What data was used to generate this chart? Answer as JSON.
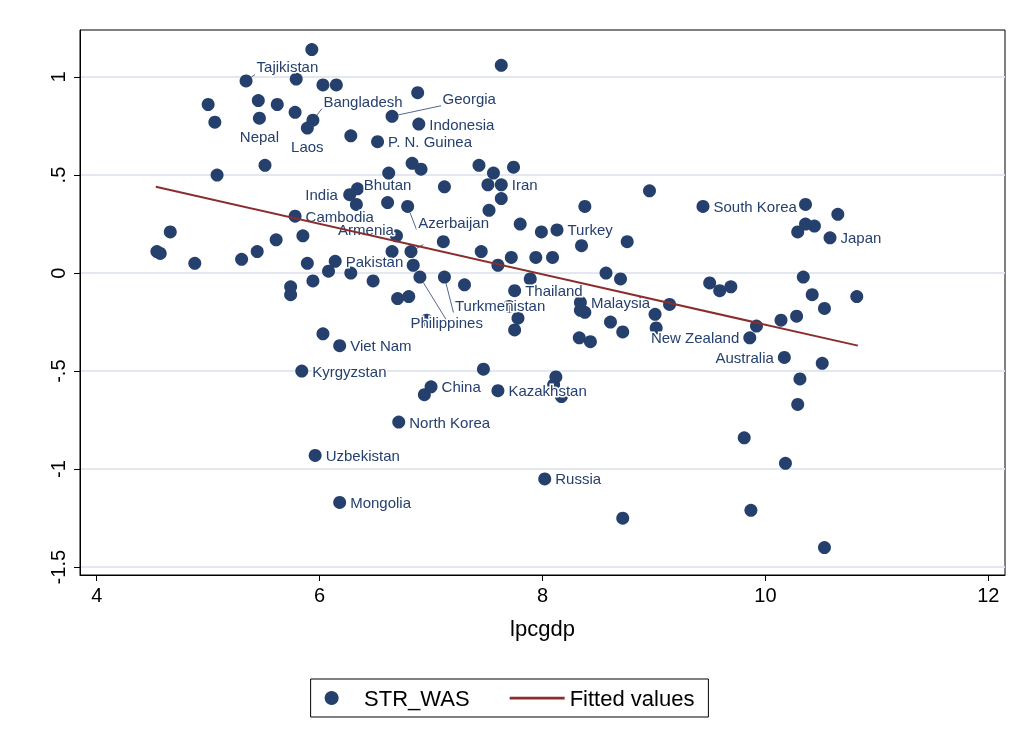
{
  "chart_data": {
    "type": "scatter",
    "xlabel": "lpcgdp",
    "xlim": [
      3.85,
      12.15
    ],
    "xticks": [
      4,
      6,
      8,
      10,
      12
    ],
    "ylim": [
      -1.54,
      1.24
    ],
    "yticks": [
      {
        "value": -1.5,
        "label": "-1.5"
      },
      {
        "value": -1,
        "label": "-1"
      },
      {
        "value": -0.5,
        "label": "-.5"
      },
      {
        "value": 0,
        "label": "0"
      },
      {
        "value": 0.5,
        "label": ".5"
      },
      {
        "value": 1,
        "label": "1"
      }
    ],
    "grid": "y",
    "legend": "bottom",
    "marker": "circle",
    "series": [
      {
        "name": "STR_WAS",
        "color": "#26406e",
        "x": [
          5.34,
          5.46,
          5.94,
          5.89,
          6.65,
          6.89,
          6.52,
          7.63,
          6.61,
          6.33,
          6.79,
          5.78,
          6.82,
          6.14,
          6.9,
          7.12,
          7.75,
          8.34,
          8.13,
          9.44,
          10.58,
          9.86,
          10.17,
          6.18,
          5.84,
          7.0,
          7.6,
          6.71,
          5.96,
          6.18,
          8.02,
          5.93,
          7.63,
          5.79,
          6.03,
          6.15,
          5.0,
          5.45,
          5.62,
          5.78,
          5.06,
          6.88,
          6.28,
          5.08,
          5.51,
          6.62,
          6.83,
          6.91,
          7.43,
          7.56,
          7.74,
          7.12,
          7.51,
          7.63,
          7.52,
          7.8,
          7.99,
          8.38,
          8.96,
          6.34,
          6.27,
          5.85,
          5.61,
          4.66,
          4.54,
          4.57,
          4.88,
          5.3,
          5.44,
          5.89,
          5.94,
          6.08,
          6.28,
          6.48,
          6.65,
          6.84,
          6.69,
          7.11,
          7.45,
          7.6,
          7.72,
          7.94,
          8.09,
          8.35,
          8.76,
          7.3,
          7.89,
          7.7,
          7.78,
          7.75,
          8.34,
          8.38,
          6.96,
          6.7,
          6.8,
          5.74,
          5.74,
          6.03,
          8.33,
          8.43,
          8.61,
          8.72,
          8.57,
          8.7,
          9.01,
          9.02,
          9.14,
          9.5,
          9.59,
          9.69,
          9.92,
          10.14,
          10.28,
          10.34,
          10.42,
          10.53,
          10.82,
          10.36,
          10.36,
          10.44,
          10.29,
          10.65,
          10.51,
          10.31,
          10.29,
          9.81,
          10.18,
          9.87,
          10.53,
          8.72,
          7.47,
          8.12,
          8.1,
          8.17,
          6.94
        ],
        "values": [
          0.98,
          0.79,
          0.78,
          0.74,
          0.8,
          0.76,
          0.67,
          0.45,
          0.36,
          0.35,
          0.34,
          0.29,
          0.11,
          0.06,
          -0.02,
          -0.02,
          -0.09,
          -0.15,
          0.22,
          0.34,
          0.18,
          -0.33,
          -0.43,
          -0.37,
          -0.5,
          -0.58,
          -0.6,
          -0.76,
          -0.93,
          -1.17,
          -1.05,
          1.14,
          1.06,
          0.99,
          0.96,
          0.96,
          0.86,
          0.88,
          0.86,
          0.82,
          0.77,
          0.92,
          0.7,
          0.5,
          0.55,
          0.51,
          0.56,
          0.53,
          0.55,
          0.51,
          0.54,
          0.44,
          0.45,
          0.38,
          0.32,
          0.25,
          0.21,
          0.34,
          0.42,
          0.43,
          0.4,
          0.19,
          0.17,
          0.21,
          0.11,
          0.1,
          0.05,
          0.07,
          0.11,
          0.05,
          -0.04,
          0.01,
          0.0,
          -0.04,
          0.11,
          0.04,
          0.19,
          0.16,
          0.11,
          0.04,
          0.08,
          0.08,
          0.08,
          0.14,
          0.16,
          -0.06,
          -0.03,
          -0.17,
          -0.23,
          -0.29,
          -0.19,
          -0.2,
          -0.24,
          -0.13,
          -0.12,
          -0.07,
          -0.11,
          -0.31,
          -0.33,
          -0.35,
          -0.25,
          -0.3,
          0.0,
          -0.03,
          -0.21,
          -0.28,
          -0.16,
          -0.05,
          -0.09,
          -0.07,
          -0.27,
          -0.24,
          -0.22,
          -0.02,
          -0.11,
          -0.18,
          -0.12,
          0.35,
          0.25,
          0.24,
          0.21,
          0.3,
          -0.46,
          -0.54,
          -0.67,
          -0.84,
          -0.97,
          -1.21,
          -1.4,
          -1.25,
          -0.49,
          -0.53,
          -0.57,
          -0.63,
          -0.62
        ],
        "value_labels": [
          "Tajikistan",
          "Nepal",
          "Bangladesh",
          "Laos",
          "Georgia",
          "Indonesia",
          "P. N. Guinea",
          "Iran",
          "Bhutan",
          "India",
          "Azerbaijan",
          "Cambodia",
          "Armenia",
          "Pakistan",
          "Philippines",
          "Turkmenistan",
          "Thailand",
          "Malaysia",
          "Turkey",
          "South Korea",
          "Japan",
          "New Zealand",
          "Australia",
          "Viet Nam",
          "Kyrgyzstan",
          "China",
          "Kazakhstan",
          "North Korea",
          "Uzbekistan",
          "Mongolia",
          "Russia",
          null,
          null,
          null,
          null,
          null,
          null,
          null,
          null,
          null,
          null,
          null,
          null,
          null,
          null,
          null,
          null,
          null,
          null,
          null,
          null,
          null,
          null,
          null,
          null,
          null,
          null,
          null,
          null,
          null,
          null,
          null,
          null,
          null,
          null,
          null,
          null,
          null,
          null,
          null,
          null,
          null,
          null,
          null,
          null,
          null,
          null,
          null,
          null,
          null,
          null,
          null,
          null,
          null,
          null,
          null,
          null,
          null,
          null,
          null,
          null,
          null,
          null,
          null,
          null,
          null,
          null,
          null,
          null,
          null,
          null,
          null,
          null,
          null,
          null,
          null,
          null,
          null,
          null,
          null,
          null,
          null,
          null,
          null,
          null,
          null,
          null,
          null,
          null,
          null,
          null,
          null,
          null,
          null,
          null,
          null,
          null,
          null,
          null,
          null,
          null,
          null,
          null,
          null,
          null
        ]
      },
      {
        "name": "Fitted values",
        "type": "line",
        "color": "#8b2d2d",
        "line_style": "solid",
        "marker": "none",
        "x": [
          4.53,
          10.83
        ],
        "values": [
          0.44,
          -0.37
        ]
      }
    ]
  }
}
